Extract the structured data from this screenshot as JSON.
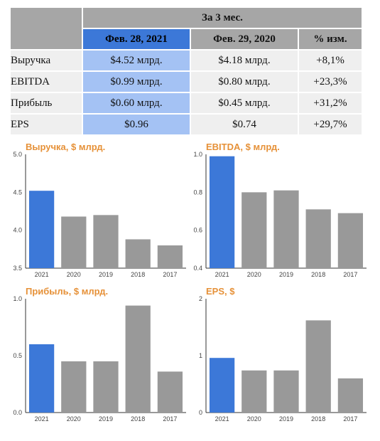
{
  "table": {
    "group_header": "За 3 мес.",
    "columns": [
      "Фев. 28, 2021",
      "Фев. 29, 2020",
      "% изм."
    ],
    "rows": [
      {
        "metric": "Выручка",
        "current": "$4.52 млрд.",
        "previous": "$4.18 млрд.",
        "change": "+8,1%"
      },
      {
        "metric": "EBITDA",
        "current": "$0.99 млрд.",
        "previous": "$0.80 млрд.",
        "change": "+23,3%"
      },
      {
        "metric": "Прибыль",
        "current": "$0.60 млрд.",
        "previous": "$0.45 млрд.",
        "change": "+31,2%"
      },
      {
        "metric": "EPS",
        "current": "$0.96",
        "previous": "$0.74",
        "change": "+29,7%"
      }
    ]
  },
  "colors": {
    "highlight_bar": "#3c78d8",
    "bar": "#999999",
    "title": "#e69138"
  },
  "chart_data": [
    {
      "type": "bar",
      "title": "Выручка, $ млрд.",
      "categories": [
        "2021",
        "2020",
        "2019",
        "2018",
        "2017"
      ],
      "values": [
        4.52,
        4.18,
        4.2,
        3.88,
        3.8
      ],
      "ylim": [
        3.5,
        5.0
      ],
      "yticks": [
        "3.5",
        "4.0",
        "4.5",
        "5.0"
      ],
      "xlabel": "",
      "ylabel": "",
      "grid": false
    },
    {
      "type": "bar",
      "title": "EBITDA, $ млрд.",
      "categories": [
        "2021",
        "2020",
        "2019",
        "2018",
        "2017"
      ],
      "values": [
        0.99,
        0.8,
        0.81,
        0.71,
        0.69
      ],
      "ylim": [
        0.4,
        1.0
      ],
      "yticks": [
        "0.4",
        "0.6",
        "0.8",
        "1.0"
      ],
      "xlabel": "",
      "ylabel": "",
      "grid": false
    },
    {
      "type": "bar",
      "title": "Прибыль, $ млрд.",
      "categories": [
        "2021",
        "2020",
        "2019",
        "2018",
        "2017"
      ],
      "values": [
        0.6,
        0.45,
        0.45,
        0.94,
        0.36
      ],
      "ylim": [
        0.0,
        1.0
      ],
      "yticks": [
        "0.0",
        "0.5",
        "1.0"
      ],
      "xlabel": "",
      "ylabel": "",
      "grid": false
    },
    {
      "type": "bar",
      "title": "EPS, $",
      "categories": [
        "2021",
        "2020",
        "2019",
        "2018",
        "2017"
      ],
      "values": [
        0.96,
        0.74,
        0.74,
        1.62,
        0.6
      ],
      "ylim": [
        0,
        2
      ],
      "yticks": [
        "0",
        "1",
        "2"
      ],
      "xlabel": "",
      "ylabel": "",
      "grid": false
    }
  ]
}
